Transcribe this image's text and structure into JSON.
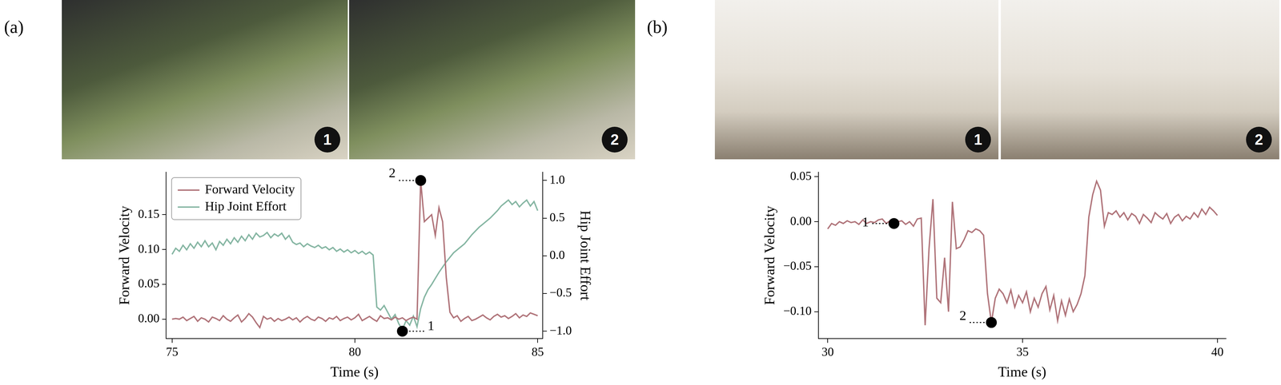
{
  "panels": [
    {
      "label": "(a)",
      "photo_badges": [
        "1",
        "2"
      ]
    },
    {
      "label": "(b)",
      "photo_badges": [
        "1",
        "2"
      ]
    }
  ],
  "chart_data": [
    {
      "type": "line",
      "x_label": "Time (s)",
      "y_label": "Forward Velocity",
      "y2_label": "Hip Joint Effort",
      "x": [
        75.0,
        75.1,
        75.2,
        75.3,
        75.4,
        75.5,
        75.6,
        75.7,
        75.8,
        75.9,
        76.0,
        76.1,
        76.2,
        76.3,
        76.4,
        76.5,
        76.6,
        76.7,
        76.8,
        76.9,
        77.0,
        77.1,
        77.2,
        77.3,
        77.4,
        77.5,
        77.6,
        77.7,
        77.8,
        77.9,
        78.0,
        78.1,
        78.2,
        78.3,
        78.4,
        78.5,
        78.6,
        78.7,
        78.8,
        78.9,
        79.0,
        79.1,
        79.2,
        79.3,
        79.4,
        79.5,
        79.6,
        79.7,
        79.8,
        79.9,
        80.0,
        80.1,
        80.2,
        80.3,
        80.4,
        80.5,
        80.6,
        80.7,
        80.8,
        80.9,
        81.0,
        81.1,
        81.2,
        81.3,
        81.4,
        81.5,
        81.6,
        81.7,
        81.8,
        81.9,
        82.0,
        82.1,
        82.2,
        82.3,
        82.4,
        82.5,
        82.6,
        82.7,
        82.8,
        82.9,
        83.0,
        83.1,
        83.2,
        83.3,
        83.4,
        83.5,
        83.6,
        83.7,
        83.8,
        83.9,
        84.0,
        84.1,
        84.2,
        84.3,
        84.4,
        84.5,
        84.6,
        84.7,
        84.8,
        84.9,
        85.0
      ],
      "series": [
        {
          "name": "Forward Velocity",
          "color": "#b0747a",
          "values": [
            0.0,
            0.001,
            0.0,
            0.003,
            -0.002,
            0.001,
            0.004,
            -0.003,
            0.002,
            0.0,
            -0.004,
            0.003,
            0.001,
            -0.002,
            0.005,
            0.0,
            -0.003,
            0.002,
            0.006,
            -0.004,
            0.001,
            0.008,
            0.003,
            -0.005,
            -0.012,
            0.004,
            0.0,
            0.002,
            -0.003,
            0.001,
            -0.002,
            0.0,
            0.003,
            -0.001,
            0.002,
            -0.004,
            0.001,
            0.004,
            0.0,
            -0.002,
            0.003,
            0.001,
            -0.003,
            0.002,
            0.0,
            0.004,
            -0.002,
            0.001,
            0.003,
            -0.001,
            0.002,
            0.007,
            -0.002,
            0.001,
            0.004,
            0.0,
            -0.003,
            0.005,
            0.001,
            0.002,
            -0.001,
            0.003,
            0.0,
            0.002,
            -0.002,
            0.001,
            0.003,
            0.0,
            0.199,
            0.14,
            0.145,
            0.15,
            0.12,
            0.16,
            0.14,
            0.06,
            0.01,
            0.002,
            0.005,
            -0.003,
            0.001,
            0.004,
            -0.002,
            0.0,
            0.003,
            0.006,
            0.002,
            -0.001,
            0.004,
            0.007,
            0.003,
            0.005,
            0.001,
            0.004,
            0.008,
            0.002,
            0.006,
            0.004,
            0.009,
            0.007,
            0.005
          ]
        },
        {
          "name": "Hip Joint Effort",
          "color": "#86b6a3",
          "axis": "y2",
          "values": [
            0.02,
            0.1,
            0.06,
            0.14,
            0.08,
            0.16,
            0.1,
            0.18,
            0.12,
            0.2,
            0.12,
            0.17,
            0.08,
            0.19,
            0.14,
            0.22,
            0.16,
            0.24,
            0.18,
            0.26,
            0.2,
            0.28,
            0.22,
            0.3,
            0.25,
            0.27,
            0.31,
            0.24,
            0.29,
            0.26,
            0.3,
            0.22,
            0.27,
            0.18,
            0.15,
            0.17,
            0.12,
            0.16,
            0.13,
            0.11,
            0.14,
            0.1,
            0.12,
            0.08,
            0.11,
            0.06,
            0.09,
            0.05,
            0.08,
            0.04,
            0.07,
            0.03,
            0.06,
            0.02,
            0.05,
            0.01,
            -0.68,
            -0.72,
            -0.66,
            -0.75,
            -0.84,
            -0.78,
            -0.9,
            -0.98,
            -0.86,
            -0.92,
            -0.8,
            -0.94,
            -0.7,
            -0.55,
            -0.45,
            -0.38,
            -0.3,
            -0.22,
            -0.15,
            -0.08,
            -0.02,
            0.04,
            0.08,
            0.12,
            0.16,
            0.22,
            0.28,
            0.33,
            0.38,
            0.42,
            0.46,
            0.5,
            0.55,
            0.6,
            0.66,
            0.7,
            0.74,
            0.68,
            0.72,
            0.65,
            0.7,
            0.74,
            0.66,
            0.72,
            0.6
          ]
        }
      ],
      "xlim": [
        74.84,
        85.14
      ],
      "xticks": [
        75,
        80,
        85
      ],
      "ylim": [
        -0.028,
        0.211
      ],
      "yticks": [
        {
          "value": 0,
          "label": "0.00"
        },
        {
          "value": 0.05,
          "label": "0.05"
        },
        {
          "value": 0.1,
          "label": "0.10"
        },
        {
          "value": 0.15,
          "label": "0.15"
        }
      ],
      "y2lim": [
        -1.1,
        1.11
      ],
      "y2ticks": [
        {
          "value": -1,
          "label": "−1.0"
        },
        {
          "value": -0.5,
          "label": "−0.5"
        },
        {
          "value": 0,
          "label": "0.0"
        },
        {
          "value": 0.5,
          "label": "0.5"
        },
        {
          "value": 1,
          "label": "1.0"
        }
      ],
      "legend": "upper left",
      "grid": false,
      "annotations": [
        {
          "x": 81.3,
          "y": -1.0,
          "axis": "y2",
          "label": "1"
        },
        {
          "x": 81.8,
          "y": 1.0,
          "axis": "y2",
          "label": "2"
        }
      ]
    },
    {
      "type": "line",
      "x_label": "Time (s)",
      "y_label": "Forward Velocity",
      "x": [
        30.0,
        30.1,
        30.2,
        30.3,
        30.4,
        30.5,
        30.6,
        30.7,
        30.8,
        30.9,
        31.0,
        31.1,
        31.2,
        31.3,
        31.4,
        31.5,
        31.6,
        31.7,
        31.8,
        31.9,
        32.0,
        32.1,
        32.2,
        32.3,
        32.4,
        32.5,
        32.6,
        32.7,
        32.8,
        32.9,
        33.0,
        33.1,
        33.2,
        33.3,
        33.4,
        33.5,
        33.6,
        33.7,
        33.8,
        33.9,
        34.0,
        34.1,
        34.2,
        34.3,
        34.4,
        34.5,
        34.6,
        34.7,
        34.8,
        34.9,
        35.0,
        35.1,
        35.2,
        35.3,
        35.4,
        35.5,
        35.6,
        35.7,
        35.8,
        35.9,
        36.0,
        36.1,
        36.2,
        36.3,
        36.4,
        36.5,
        36.6,
        36.7,
        36.8,
        36.9,
        37.0,
        37.1,
        37.2,
        37.3,
        37.4,
        37.5,
        37.6,
        37.7,
        37.8,
        37.9,
        38.0,
        38.1,
        38.2,
        38.3,
        38.4,
        38.5,
        38.6,
        38.7,
        38.8,
        38.9,
        39.0,
        39.1,
        39.2,
        39.3,
        39.4,
        39.5,
        39.6,
        39.7,
        39.8,
        39.9,
        40.0
      ],
      "color": "#b0747a",
      "values": [
        -0.008,
        -0.002,
        -0.004,
        0.0,
        -0.002,
        0.001,
        -0.001,
        0.0,
        -0.003,
        0.002,
        -0.002,
        0.0,
        -0.001,
        0.002,
        0.003,
        -0.002,
        0.001,
        -0.002,
        0.0,
        0.001,
        -0.003,
        0.0,
        -0.005,
        0.003,
        0.004,
        -0.115,
        -0.03,
        0.025,
        -0.085,
        -0.09,
        -0.04,
        -0.1,
        0.022,
        -0.03,
        -0.028,
        -0.02,
        -0.01,
        -0.012,
        -0.008,
        -0.01,
        -0.015,
        -0.08,
        -0.112,
        -0.085,
        -0.075,
        -0.08,
        -0.09,
        -0.076,
        -0.095,
        -0.082,
        -0.09,
        -0.078,
        -0.1,
        -0.085,
        -0.095,
        -0.08,
        -0.072,
        -0.098,
        -0.082,
        -0.11,
        -0.088,
        -0.104,
        -0.086,
        -0.1,
        -0.092,
        -0.08,
        -0.06,
        0.005,
        0.03,
        0.045,
        0.035,
        -0.005,
        0.01,
        0.008,
        0.012,
        0.005,
        0.01,
        0.002,
        0.009,
        0.006,
        -0.002,
        0.008,
        0.004,
        -0.001,
        0.01,
        0.006,
        0.003,
        0.009,
        -0.002,
        0.005,
        0.008,
        0.001,
        0.006,
        0.003,
        0.01,
        0.005,
        0.014,
        0.008,
        0.016,
        0.012,
        0.007
      ],
      "xlim": [
        29.76,
        40.22
      ],
      "xticks": [
        30,
        35,
        40
      ],
      "ylim": [
        -0.13,
        0.055
      ],
      "yticks": [
        {
          "value": -0.1,
          "label": "−0.10"
        },
        {
          "value": -0.05,
          "label": "−0.05"
        },
        {
          "value": 0,
          "label": "0.00"
        },
        {
          "value": 0.05,
          "label": "0.05"
        }
      ],
      "grid": false,
      "annotations": [
        {
          "x": 31.7,
          "y": -0.002,
          "axis": "y",
          "label": "1"
        },
        {
          "x": 34.2,
          "y": -0.112,
          "axis": "y",
          "label": "2"
        }
      ]
    }
  ]
}
